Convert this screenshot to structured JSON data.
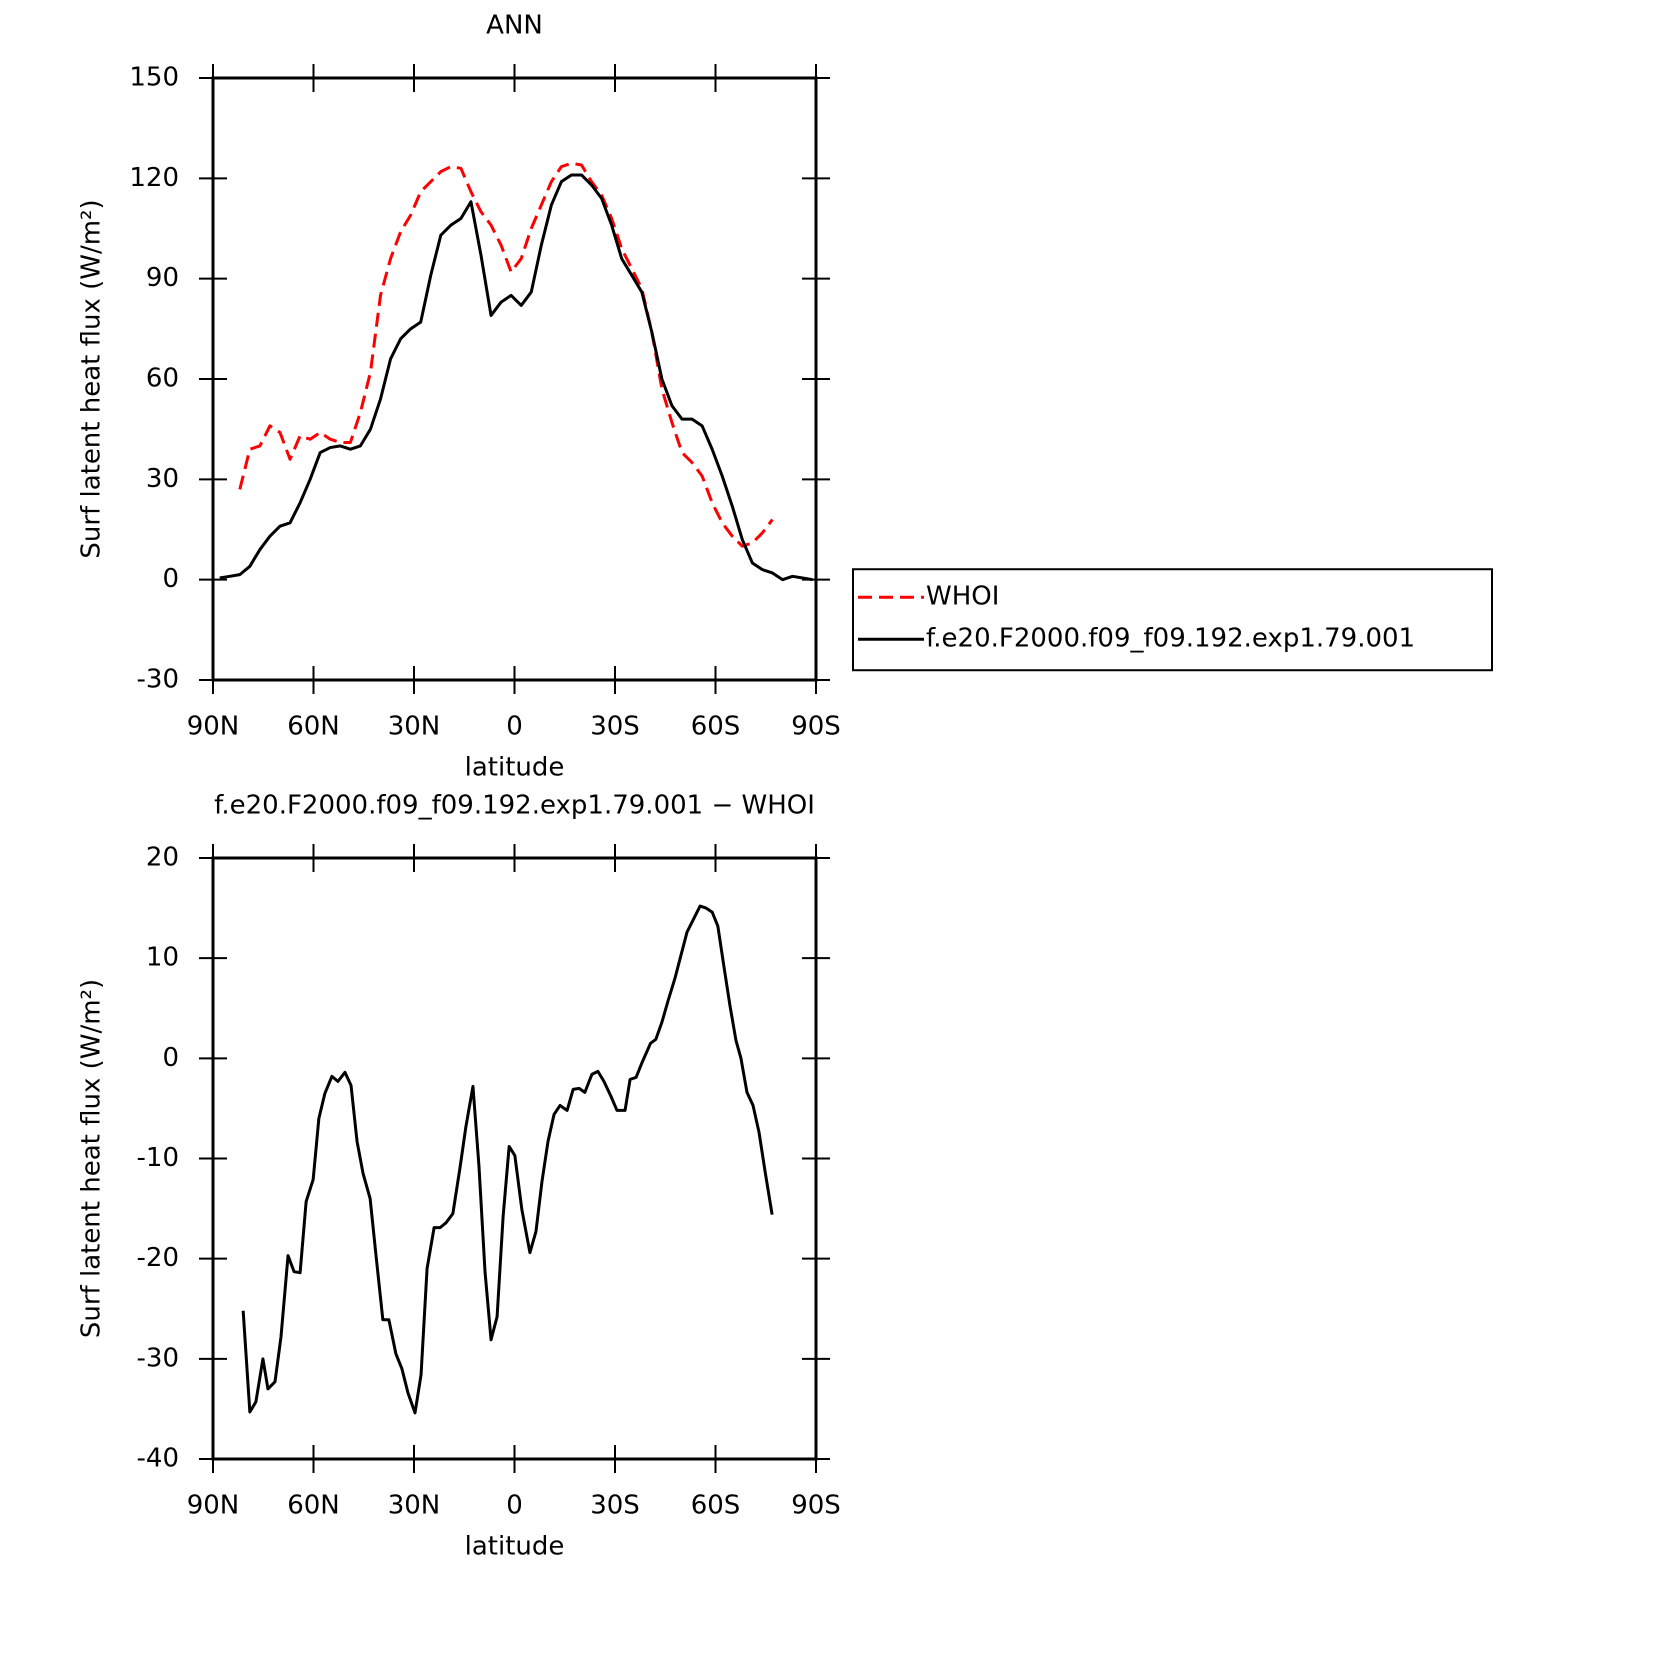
{
  "chart_data": [
    {
      "type": "line",
      "title": "ANN",
      "xlabel": "latitude",
      "ylabel": "Surf latent heat flux (W/m²)",
      "x": [
        88,
        85,
        82,
        79,
        76,
        73,
        70,
        67,
        64,
        61,
        58,
        55,
        52,
        49,
        46,
        43,
        40,
        37,
        34,
        31,
        28,
        25,
        22,
        19,
        16,
        13,
        10,
        7,
        4,
        1,
        -2,
        -5,
        -8,
        -11,
        -14,
        -17,
        -20,
        -23,
        -26,
        -29,
        -32,
        -35,
        -38,
        -41,
        -44,
        -47,
        -50,
        -53,
        -56,
        -59,
        -62,
        -65,
        -68,
        -71,
        -74,
        -77,
        -80,
        -83,
        -86,
        -89
      ],
      "xlim": [
        90,
        -90
      ],
      "xticks": [
        {
          "value": 90,
          "label": "90N"
        },
        {
          "value": 60,
          "label": "60N"
        },
        {
          "value": 30,
          "label": "30N"
        },
        0,
        {
          "value": -30,
          "label": "30S"
        },
        {
          "value": -60,
          "label": "60S"
        },
        {
          "value": -90,
          "label": "90S"
        }
      ],
      "ylim": [
        -30,
        150
      ],
      "yticks": [
        -30,
        0,
        30,
        60,
        90,
        120,
        150
      ],
      "legend": "right",
      "series": [
        {
          "name": "WHOI",
          "color": "#ff0000",
          "dashed": true,
          "values": [
            null,
            null,
            27,
            39,
            40,
            46,
            44,
            36,
            43,
            42,
            44,
            42,
            41,
            41,
            50,
            62,
            85,
            96,
            104,
            109,
            116,
            119,
            122,
            123.5,
            123,
            116,
            110,
            106,
            100,
            92,
            96,
            105,
            112,
            119,
            123.5,
            124.5,
            124,
            119,
            115,
            108,
            99,
            93,
            87,
            74,
            57,
            47,
            38,
            35,
            31,
            23,
            17,
            13,
            10,
            11,
            14,
            18,
            null,
            null,
            null,
            null
          ]
        },
        {
          "name": "f.e20.F2000.f09_f09.192.exp1.79.001",
          "color": "#000000",
          "dashed": false,
          "values": [
            0.5,
            1,
            1.5,
            4,
            9,
            13,
            16,
            17,
            23,
            30,
            38,
            39.5,
            40,
            39,
            40,
            45,
            54,
            66,
            72,
            75,
            77,
            91,
            103,
            106,
            108,
            113,
            97,
            79,
            83,
            85,
            82,
            86,
            100,
            112,
            119,
            121,
            121,
            118,
            114,
            106,
            96,
            91,
            86,
            74,
            60,
            52,
            48,
            48,
            46,
            39,
            31,
            22,
            12,
            5,
            3,
            2,
            0,
            1,
            0.5,
            0
          ]
        }
      ]
    },
    {
      "type": "line",
      "title": "f.e20.F2000.f09_f09.192.exp1.79.001 − WHOI",
      "xlabel": "latitude",
      "ylabel": "Surf latent heat flux (W/m²)",
      "x": [
        81.0,
        79.0,
        77.2,
        75.1,
        73.6,
        71.5,
        69.7,
        67.6,
        65.8,
        64.0,
        62.2,
        60.1,
        58.4,
        56.6,
        54.5,
        52.7,
        50.6,
        48.8,
        47.0,
        45.2,
        43.1,
        41.3,
        39.3,
        37.5,
        35.4,
        33.6,
        31.8,
        29.7,
        27.9,
        26.1,
        24.0,
        22.2,
        20.4,
        18.4,
        16.3,
        14.5,
        12.4,
        10.6,
        8.8,
        7.0,
        5.2,
        3.4,
        1.6,
        -0.1,
        -2.2,
        -4.6,
        -6.4,
        -8.2,
        -10.0,
        -11.8,
        -13.6,
        -15.7,
        -17.5,
        -19.3,
        -21.0,
        -23.1,
        -24.9,
        -26.7,
        -28.8,
        -30.6,
        -33.0,
        -34.5,
        -36.3,
        -38.1,
        -40.6,
        -42.2,
        -44.0,
        -45.8,
        -47.9,
        -49.7,
        -51.5,
        -53.6,
        -55.4,
        -57.2,
        -59.0,
        -60.7,
        -62.5,
        -64.3,
        -66.1,
        -67.6,
        -69.4,
        -71.2,
        -73.0,
        -74.8,
        -76.9
      ],
      "xlim": [
        90,
        -90
      ],
      "xticks": [
        {
          "value": 90,
          "label": "90N"
        },
        {
          "value": 60,
          "label": "60N"
        },
        {
          "value": 30,
          "label": "30N"
        },
        0,
        {
          "value": -30,
          "label": "30S"
        },
        {
          "value": -60,
          "label": "60S"
        },
        {
          "value": -90,
          "label": "90S"
        }
      ],
      "ylim": [
        -40,
        20
      ],
      "yticks": [
        -40,
        -30,
        -20,
        -10,
        0,
        10,
        20
      ],
      "series": [
        {
          "color": "#000000",
          "dashed": false,
          "values": [
            -25.2,
            -35.3,
            -34.3,
            -30,
            -33,
            -32.3,
            -27.8,
            -19.7,
            -21.3,
            -21.4,
            -14.3,
            -12.1,
            -6,
            -3.5,
            -1.8,
            -2.3,
            -1.4,
            -2.7,
            -8.3,
            -11.5,
            -14,
            -19.8,
            -26.1,
            -26.1,
            -29.5,
            -31,
            -33.4,
            -35.4,
            -31.6,
            -21,
            -16.9,
            -16.9,
            -16.4,
            -15.5,
            -11,
            -6.8,
            -2.8,
            -10.8,
            -21.3,
            -28.1,
            -25.8,
            -15.8,
            -8.8,
            -9.7,
            -15.1,
            -19.4,
            -17.3,
            -12.3,
            -8.3,
            -5.6,
            -4.7,
            -5.2,
            -3.1,
            -3,
            -3.4,
            -1.6,
            -1.3,
            -2.3,
            -3.8,
            -5.2,
            -5.2,
            -2.1,
            -1.9,
            -0.4,
            1.5,
            1.9,
            3.6,
            5.7,
            8,
            10.3,
            12.6,
            14,
            15.2,
            15,
            14.6,
            13.2,
            9.2,
            5.3,
            1.8,
            0,
            -3.4,
            -4.7,
            -7.4,
            -11.3,
            -15.6
          ]
        }
      ]
    }
  ]
}
